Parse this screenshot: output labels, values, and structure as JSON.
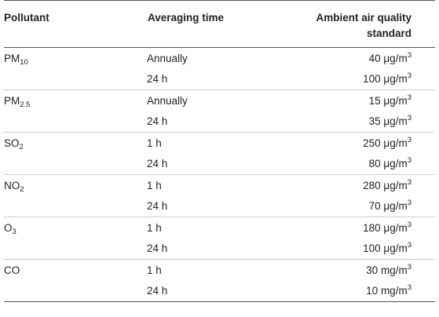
{
  "table": {
    "headers": {
      "pollutant": "Pollutant",
      "averaging_time": "Averaging time",
      "standard_line1": "Ambient air quality",
      "standard_line2": "standard"
    },
    "rows": [
      {
        "pollutant_base": "PM",
        "pollutant_sub": "10",
        "time": "Annually",
        "value": "40 μg/m",
        "exp": "3"
      },
      {
        "pollutant_base": "",
        "pollutant_sub": "",
        "time": "24 h",
        "value": "100 μg/m",
        "exp": "3"
      },
      {
        "pollutant_base": "PM",
        "pollutant_sub": "2.5",
        "time": "Annually",
        "value": "15 μg/m",
        "exp": "3"
      },
      {
        "pollutant_base": "",
        "pollutant_sub": "",
        "time": "24 h",
        "value": "35 μg/m",
        "exp": "3"
      },
      {
        "pollutant_base": "SO",
        "pollutant_sub": "2",
        "time": "1 h",
        "value": "250 μg/m",
        "exp": "3"
      },
      {
        "pollutant_base": "",
        "pollutant_sub": "",
        "time": "24 h",
        "value": "80 μg/m",
        "exp": "3"
      },
      {
        "pollutant_base": "NO",
        "pollutant_sub": "2",
        "time": "1 h",
        "value": "280 μg/m",
        "exp": "3"
      },
      {
        "pollutant_base": "",
        "pollutant_sub": "",
        "time": "24 h",
        "value": "70 μg/m",
        "exp": "3"
      },
      {
        "pollutant_base": "O",
        "pollutant_sub": "3",
        "time": "1 h",
        "value": "180 μg/m",
        "exp": "3"
      },
      {
        "pollutant_base": "",
        "pollutant_sub": "",
        "time": "24 h",
        "value": "100 μg/m",
        "exp": "3"
      },
      {
        "pollutant_base": "CO",
        "pollutant_sub": "",
        "time": "1 h",
        "value": "30 mg/m",
        "exp": "3"
      },
      {
        "pollutant_base": "",
        "pollutant_sub": "",
        "time": "24 h",
        "value": "10 mg/m",
        "exp": "3"
      }
    ]
  }
}
